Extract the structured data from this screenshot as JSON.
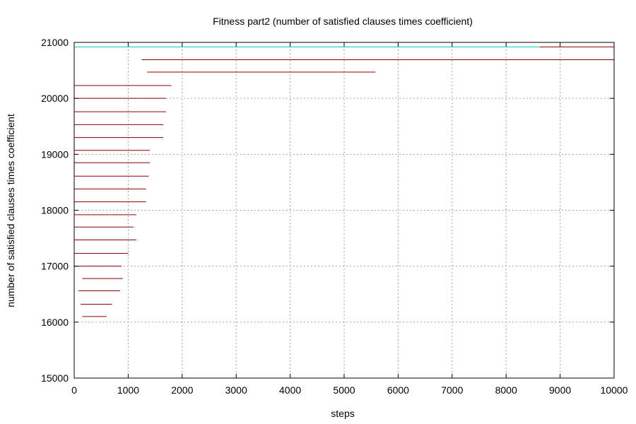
{
  "chart_data": {
    "type": "line",
    "title": "Fitness part2 (number of satisfied clauses times coefficient)",
    "xlabel": "steps",
    "ylabel": "number of satisfied clauses times coefficient",
    "xlim": [
      0,
      10000
    ],
    "ylim": [
      15000,
      21000
    ],
    "x_ticks": [
      "0",
      "1000",
      "2000",
      "3000",
      "4000",
      "5000",
      "6000",
      "7000",
      "8000",
      "9000",
      "10000"
    ],
    "y_ticks": [
      "15000",
      "16000",
      "17000",
      "18000",
      "19000",
      "20000",
      "21000"
    ],
    "grid": true,
    "colors": {
      "primary": "#8b0000",
      "secondary": "#00cccc"
    },
    "series": [
      {
        "color": "#8b0000",
        "segments": [
          {
            "y": 20920,
            "x_start": 8620,
            "x_end": 10000
          },
          {
            "y": 20690,
            "x_start": 1250,
            "x_end": 10000
          },
          {
            "y": 20470,
            "x_start": 1350,
            "x_end": 5580
          },
          {
            "y": 20230,
            "x_start": 0,
            "x_end": 1800
          },
          {
            "y": 20000,
            "x_start": 0,
            "x_end": 1700
          },
          {
            "y": 19760,
            "x_start": 0,
            "x_end": 1700
          },
          {
            "y": 19530,
            "x_start": 0,
            "x_end": 1650
          },
          {
            "y": 19300,
            "x_start": 0,
            "x_end": 1650
          },
          {
            "y": 19070,
            "x_start": 0,
            "x_end": 1400
          },
          {
            "y": 18850,
            "x_start": 0,
            "x_end": 1400
          },
          {
            "y": 18610,
            "x_start": 0,
            "x_end": 1380
          },
          {
            "y": 18380,
            "x_start": 0,
            "x_end": 1330
          },
          {
            "y": 18150,
            "x_start": 0,
            "x_end": 1330
          },
          {
            "y": 17920,
            "x_start": 0,
            "x_end": 1150
          },
          {
            "y": 17700,
            "x_start": 0,
            "x_end": 1100
          },
          {
            "y": 17470,
            "x_start": 0,
            "x_end": 1150
          },
          {
            "y": 17230,
            "x_start": 0,
            "x_end": 1000
          },
          {
            "y": 17000,
            "x_start": 0,
            "x_end": 880
          },
          {
            "y": 16780,
            "x_start": 150,
            "x_end": 900
          },
          {
            "y": 16560,
            "x_start": 80,
            "x_end": 850
          },
          {
            "y": 16320,
            "x_start": 120,
            "x_end": 700
          },
          {
            "y": 16100,
            "x_start": 150,
            "x_end": 600
          }
        ]
      },
      {
        "color": "#00cccc",
        "segments": [
          {
            "y": 20920,
            "x_start": 0,
            "x_end": 8620
          }
        ]
      }
    ]
  }
}
